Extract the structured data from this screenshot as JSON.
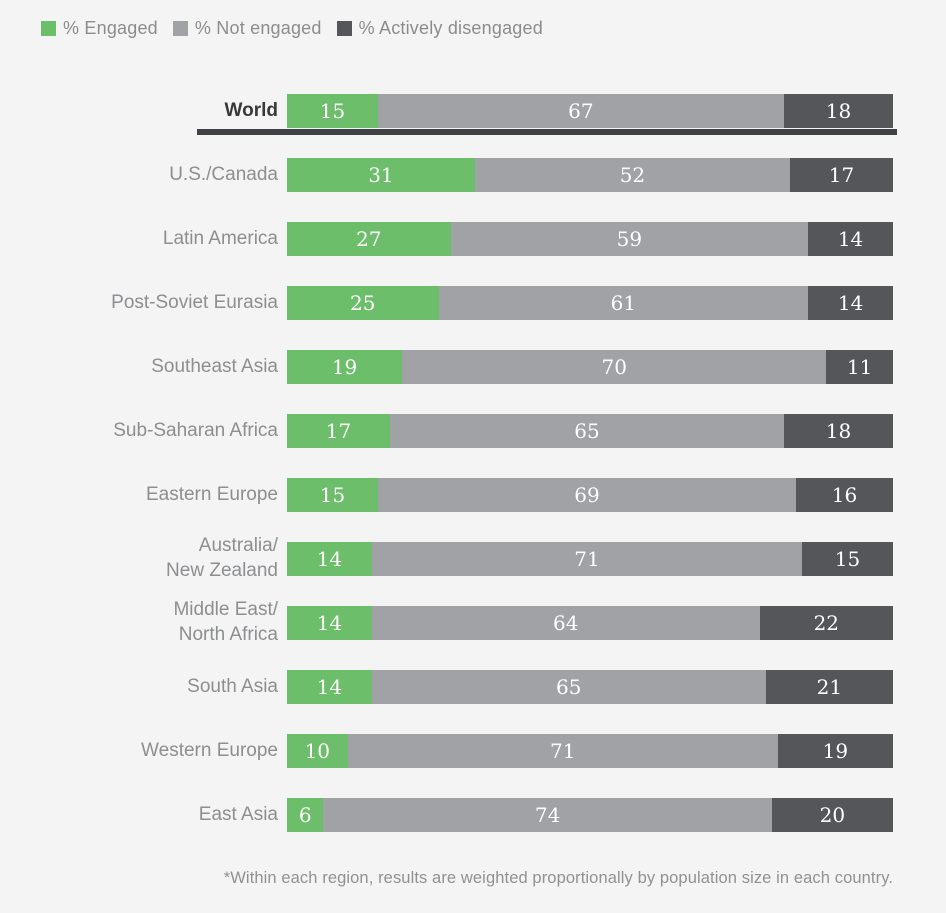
{
  "chart_data": {
    "type": "bar",
    "orientation": "horizontal",
    "stacked": true,
    "unit": "%",
    "xlim": [
      0,
      100
    ],
    "grid": false,
    "legend_position": "top-left",
    "value_labels": "inside-center",
    "emphasized_category": "World",
    "categories": [
      "World",
      "U.S./Canada",
      "Latin America",
      "Post-Soviet Eurasia",
      "Southeast Asia",
      "Sub-Saharan Africa",
      "Eastern Europe",
      "Australia/\nNew Zealand",
      "Middle East/\nNorth Africa",
      "South Asia",
      "Western Europe",
      "East Asia"
    ],
    "series": [
      {
        "name": "% Engaged",
        "color": "#6cbe6a",
        "values": [
          15,
          31,
          27,
          25,
          19,
          17,
          15,
          14,
          14,
          14,
          10,
          6
        ]
      },
      {
        "name": "% Not engaged",
        "color": "#a1a2a6",
        "values": [
          67,
          52,
          59,
          61,
          70,
          65,
          69,
          71,
          64,
          65,
          71,
          74
        ]
      },
      {
        "name": "% Actively disengaged",
        "color": "#55565a",
        "values": [
          18,
          17,
          14,
          14,
          11,
          18,
          16,
          15,
          22,
          21,
          19,
          20
        ]
      }
    ]
  },
  "footnote": "*Within each region, results are weighted proportionally by population size in each country.",
  "styles": {
    "background": "#f4f4f5",
    "label_color": "#8c8e90",
    "emphasis_color": "#38393b",
    "value_text_color": "#ffffff",
    "underline_color": "#404145"
  }
}
